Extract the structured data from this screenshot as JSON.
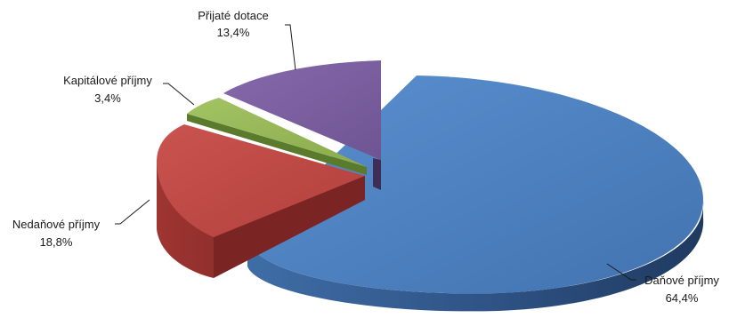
{
  "chart_data": {
    "type": "pie",
    "variant": "3d-exploded",
    "title": "",
    "legend": "none",
    "slices": [
      {
        "label": "Daňové příjmy",
        "value": 64.4,
        "value_label": "64,4%",
        "color": "#4f81bd"
      },
      {
        "label": "Nedaňové příjmy",
        "value": 18.8,
        "value_label": "18,8%",
        "color": "#c0504d"
      },
      {
        "label": "Kapitálové příjmy",
        "value": 3.4,
        "value_label": "3,4%",
        "color": "#9bbb59"
      },
      {
        "label": "Přijaté dotace",
        "value": 13.4,
        "value_label": "13,4%",
        "color": "#8064a2"
      }
    ]
  }
}
